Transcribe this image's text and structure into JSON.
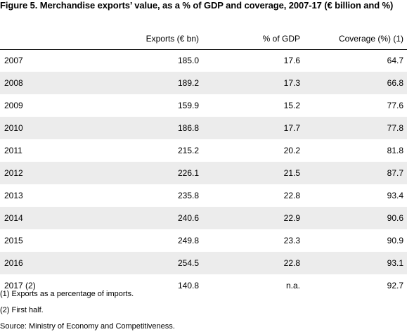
{
  "title": "Figure 5. Merchandise exports’ value, as a % of GDP and coverage, 2007-17 (€ billion and %)",
  "table": {
    "headers": {
      "year": "",
      "exports": "Exports (€ bn)",
      "gdp": "% of GDP",
      "coverage": "Coverage (%) (1)"
    },
    "rows": [
      {
        "year": "2007",
        "exports": "185.0",
        "gdp": "17.6",
        "coverage": "64.7"
      },
      {
        "year": "2008",
        "exports": "189.2",
        "gdp": "17.3",
        "coverage": "66.8"
      },
      {
        "year": "2009",
        "exports": "159.9",
        "gdp": "15.2",
        "coverage": "77.6"
      },
      {
        "year": "2010",
        "exports": "186.8",
        "gdp": "17.7",
        "coverage": "77.8"
      },
      {
        "year": "2011",
        "exports": "215.2",
        "gdp": "20.2",
        "coverage": "81.8"
      },
      {
        "year": "2012",
        "exports": "226.1",
        "gdp": "21.5",
        "coverage": "87.7"
      },
      {
        "year": "2013",
        "exports": "235.8",
        "gdp": "22.8",
        "coverage": "93.4"
      },
      {
        "year": "2014",
        "exports": "240.6",
        "gdp": "22.9",
        "coverage": "90.6"
      },
      {
        "year": "2015",
        "exports": "249.8",
        "gdp": "23.3",
        "coverage": "90.9"
      },
      {
        "year": "2016",
        "exports": "254.5",
        "gdp": "22.8",
        "coverage": "93.1"
      },
      {
        "year": "2017 (2)",
        "exports": "140.8",
        "gdp": "n.a.",
        "coverage": "92.7"
      }
    ]
  },
  "footnotes": [
    "(1) Exports as a percentage of imports.",
    "(2) First half.",
    "Source: Ministry of Economy and Competitiveness."
  ]
}
